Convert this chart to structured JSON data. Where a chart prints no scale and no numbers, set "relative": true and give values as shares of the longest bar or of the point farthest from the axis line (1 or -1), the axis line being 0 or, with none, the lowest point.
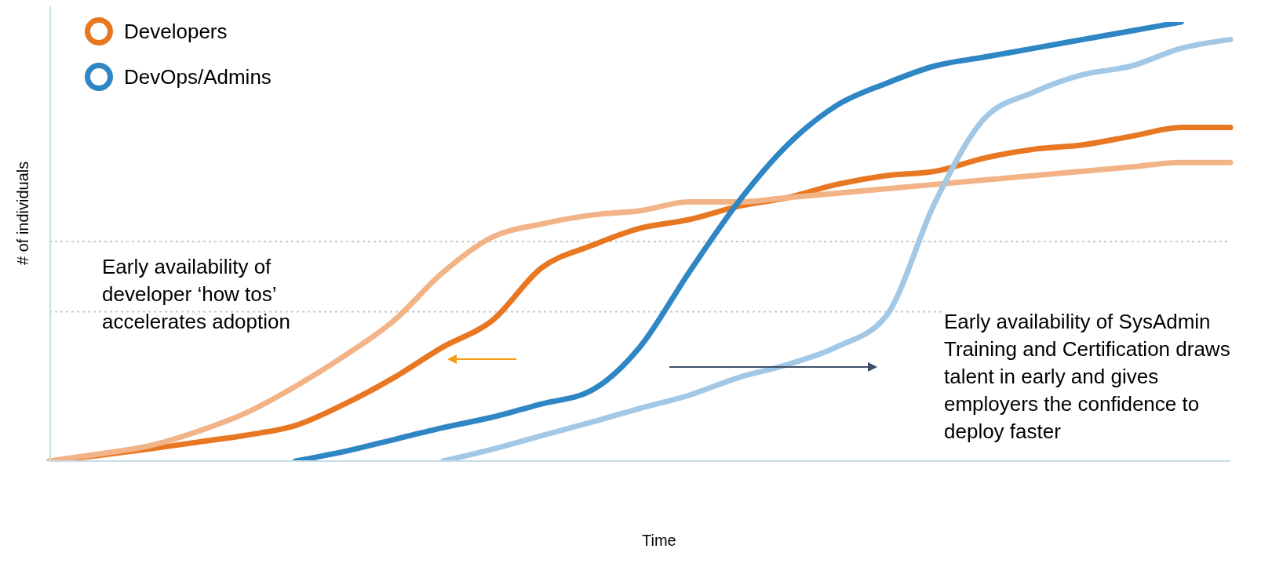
{
  "chart_data": {
    "type": "line",
    "relative": true,
    "xlabel": "Time",
    "ylabel": "# of individuals",
    "legend": "top left",
    "marker": "none",
    "line_style": "solid",
    "categories": [
      null,
      null,
      null,
      null,
      null,
      null,
      null,
      null,
      null,
      null,
      null,
      null,
      null,
      null,
      null,
      null,
      null,
      null,
      null,
      null,
      null,
      null,
      null,
      null,
      null
    ],
    "series": [
      {
        "name": "Developers",
        "color": "#e87722",
        "values": [
          0,
          0.013,
          0.027,
          0.043,
          0.059,
          0.081,
          0.13,
          0.19,
          0.26,
          0.32,
          0.44,
          0.49,
          0.53,
          0.55,
          0.58,
          0.6,
          0.63,
          0.65,
          0.66,
          0.69,
          0.71,
          0.72,
          0.74,
          0.76,
          0.76
        ]
      },
      {
        "color": "#f2b487",
        "values": [
          0,
          0.016,
          0.034,
          0.067,
          0.11,
          0.17,
          0.24,
          0.32,
          0.43,
          0.51,
          0.54,
          0.56,
          0.57,
          0.59,
          0.59,
          0.6,
          0.61,
          0.62,
          0.63,
          0.64,
          0.65,
          0.66,
          0.67,
          0.68,
          0.68
        ]
      },
      {
        "name": "DevOps/Admins",
        "color": "#2f86c4",
        "values": [
          null,
          null,
          null,
          null,
          null,
          0,
          0.022,
          0.049,
          0.076,
          0.1,
          0.13,
          0.16,
          0.26,
          0.43,
          0.59,
          0.72,
          0.81,
          0.86,
          0.9,
          0.92,
          0.94,
          0.96,
          0.98,
          1,
          null
        ]
      },
      {
        "color": "#a3c8e6",
        "values": [
          null,
          null,
          null,
          null,
          null,
          null,
          null,
          null,
          0,
          0.027,
          0.058,
          0.088,
          0.12,
          0.15,
          0.19,
          0.22,
          0.26,
          0.33,
          0.59,
          0.78,
          0.84,
          0.88,
          0.9,
          0.94,
          0.96
        ]
      }
    ],
    "ref_lines": [
      {
        "axis": "y",
        "value": 0.34,
        "color": "#c8c8c8",
        "line_style": "dotted"
      },
      {
        "axis": "y",
        "value": 0.5,
        "color": "#c8c8c8",
        "line_style": "dotted"
      }
    ],
    "annotations": [
      "Early availability of developer ‘how tos’ accelerates adoption",
      "Early availability of SysAdmin Training and Certification draws talent in early and gives employers the confidence to deploy faster"
    ]
  }
}
